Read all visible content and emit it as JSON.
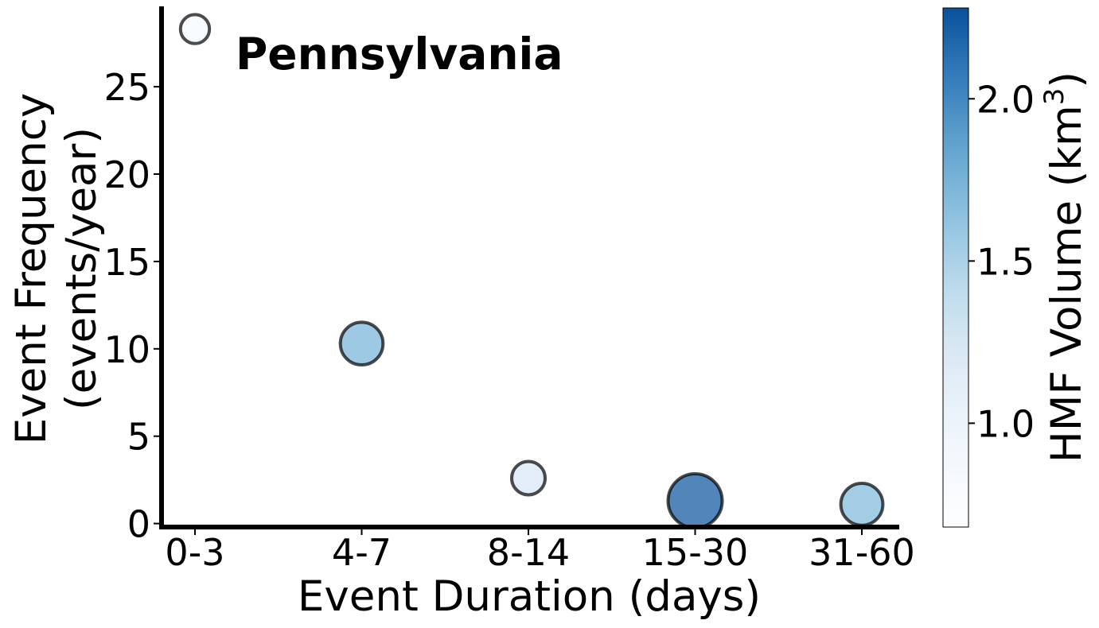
{
  "chart_data": {
    "type": "scatter",
    "title": "Pennsylvania",
    "xlabel": "Event Duration (days)",
    "ylabel_line1": "Event Frequency",
    "ylabel_line2": "(events/year)",
    "categories": [
      "0-3",
      "4-7",
      "8-14",
      "15-30",
      "31-60"
    ],
    "yticks": [
      0,
      5,
      10,
      15,
      20,
      25
    ],
    "ylim": [
      -0.2,
      29.6
    ],
    "points": [
      {
        "category": "0-3",
        "frequency": 28.3,
        "hmf_volume": 0.7
      },
      {
        "category": "4-7",
        "frequency": 10.3,
        "hmf_volume": 1.56
      },
      {
        "category": "8-14",
        "frequency": 2.6,
        "hmf_volume": 0.98
      },
      {
        "category": "15-30",
        "frequency": 1.3,
        "hmf_volume": 2.28
      },
      {
        "category": "31-60",
        "frequency": 1.1,
        "hmf_volume": 1.52
      }
    ],
    "colorbar": {
      "label": "HMF Volume (km",
      "label_superscript": "3",
      "label_suffix": ")",
      "ticks": [
        "1.0",
        "1.5",
        "2.0"
      ],
      "tick_values": [
        1.0,
        1.5,
        2.0
      ],
      "range": [
        0.68,
        2.28
      ],
      "colormap": [
        "#f7fbff",
        "#deebf7",
        "#c6dbef",
        "#9ecae1",
        "#6baed6",
        "#4292c6",
        "#2171b5",
        "#08519c"
      ]
    },
    "marker_alpha": 0.7,
    "marker_edge": "#000000",
    "grid": false,
    "legend": "none"
  }
}
